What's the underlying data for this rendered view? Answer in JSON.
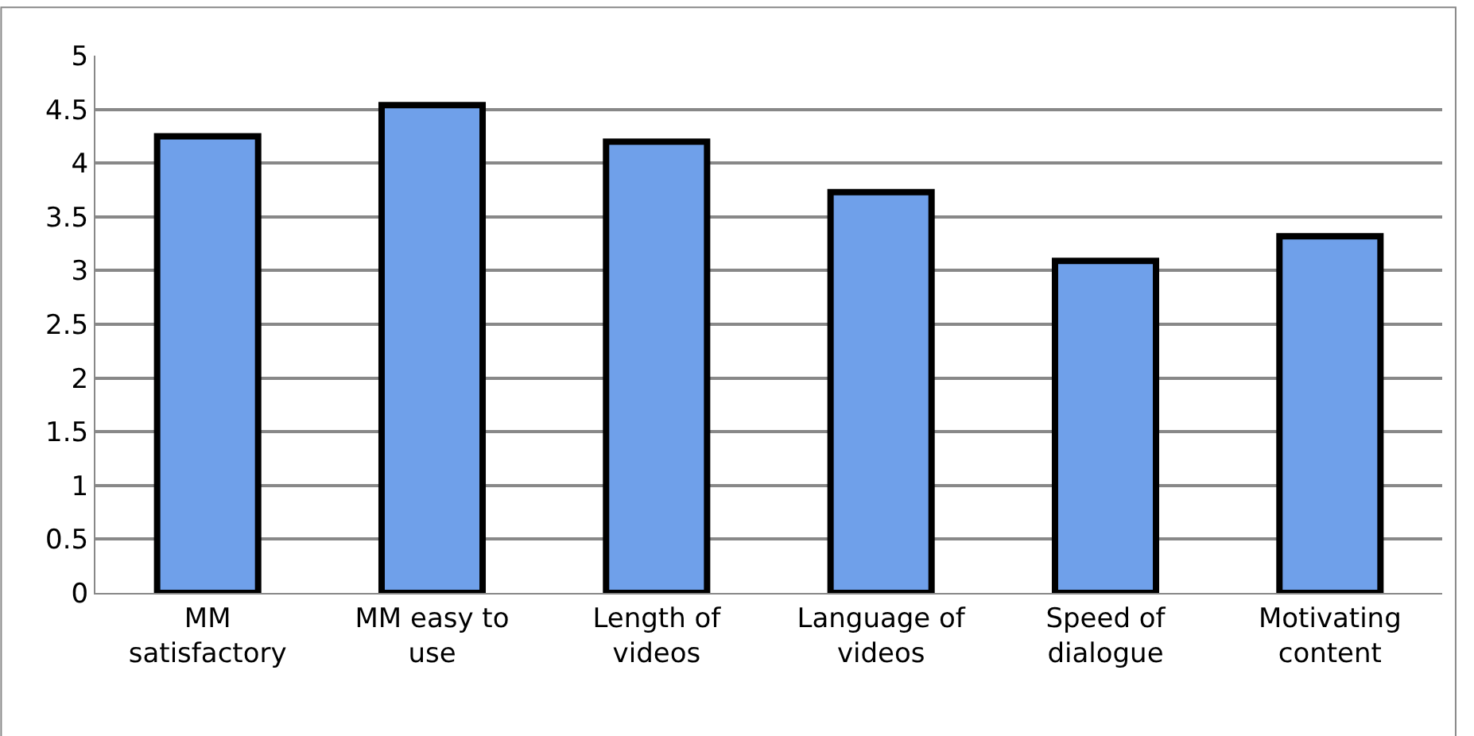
{
  "chart_data": {
    "type": "bar",
    "categories": [
      "MM satisfactory",
      "MM easy to use",
      "Length of videos",
      "Language of videos",
      "Speed of dialogue",
      "Motivating content"
    ],
    "values": [
      4.25,
      4.54,
      4.2,
      3.73,
      3.09,
      3.32
    ],
    "color": "#6fa0ea",
    "ylim": [
      0,
      5
    ],
    "yticks": [
      0,
      0.5,
      1,
      1.5,
      2,
      2.5,
      3,
      3.5,
      4,
      4.5,
      5
    ],
    "grid": "y"
  }
}
